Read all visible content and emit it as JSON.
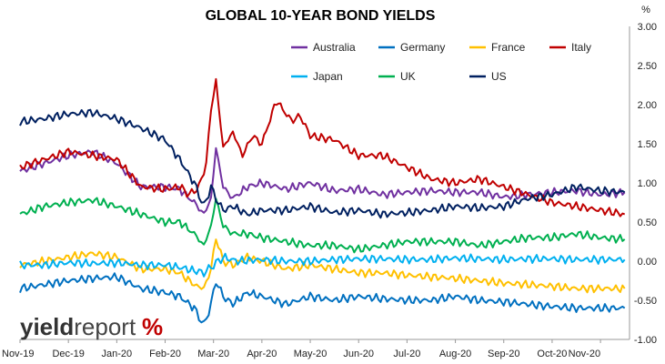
{
  "chart_data": {
    "type": "line",
    "title": "GLOBAL 10-YEAR BOND YIELDS",
    "ylabel": "%",
    "ylim": [
      -1.0,
      3.0
    ],
    "xlim": [
      0,
      12.6
    ],
    "grid": false,
    "legend_position": "top-right",
    "y_ticks": [
      "3.00",
      "2.50",
      "2.00",
      "1.50",
      "1.00",
      "0.50",
      "0.00",
      "-0.50",
      "-1.00"
    ],
    "y_tick_values": [
      3.0,
      2.5,
      2.0,
      1.5,
      1.0,
      0.5,
      0.0,
      -0.5,
      -1.0
    ],
    "x_ticks": [
      "Nov-19",
      "Dec-19",
      "Jan-20",
      "Feb-20",
      "Mar-20",
      "Apr-20",
      "May-20",
      "Jun-20",
      "Jul-20",
      "Aug-20",
      "Sep-20",
      "Oct-20",
      "Nov-20"
    ],
    "series": [
      {
        "name": "Australia",
        "color": "#7030A0",
        "x": [
          0,
          0.5,
          1,
          1.5,
          2,
          2.5,
          3,
          3.3,
          3.6,
          3.8,
          3.95,
          4.05,
          4.2,
          4.4,
          4.7,
          5,
          5.5,
          6,
          6.5,
          7,
          7.5,
          8,
          8.5,
          9,
          9.5,
          10,
          10.5,
          11,
          11.5,
          12,
          12.5
        ],
        "y": [
          1.15,
          1.25,
          1.35,
          1.4,
          1.25,
          0.95,
          0.95,
          0.92,
          0.75,
          0.6,
          0.8,
          1.45,
          0.95,
          0.8,
          0.95,
          1.0,
          0.92,
          1.0,
          0.9,
          0.92,
          0.85,
          0.88,
          0.9,
          0.88,
          0.88,
          0.82,
          0.85,
          0.88,
          0.9,
          0.85,
          0.88
        ]
      },
      {
        "name": "Germany",
        "color": "#0070C0",
        "x": [
          0,
          0.5,
          1,
          1.5,
          2,
          2.5,
          3,
          3.3,
          3.6,
          3.8,
          3.95,
          4.05,
          4.2,
          4.4,
          4.7,
          5,
          5.5,
          6,
          6.5,
          7,
          7.5,
          8,
          8.5,
          9,
          9.5,
          10,
          10.5,
          11,
          11.5,
          12,
          12.5
        ],
        "y": [
          -0.35,
          -0.3,
          -0.25,
          -0.22,
          -0.2,
          -0.35,
          -0.4,
          -0.45,
          -0.6,
          -0.82,
          -0.55,
          -0.25,
          -0.45,
          -0.55,
          -0.4,
          -0.45,
          -0.55,
          -0.45,
          -0.5,
          -0.45,
          -0.48,
          -0.5,
          -0.5,
          -0.45,
          -0.5,
          -0.52,
          -0.55,
          -0.58,
          -0.6,
          -0.6,
          -0.6
        ]
      },
      {
        "name": "France",
        "color": "#FFC000",
        "x": [
          0,
          0.5,
          1,
          1.5,
          2,
          2.5,
          3,
          3.3,
          3.6,
          3.8,
          3.95,
          4.05,
          4.2,
          4.4,
          4.7,
          5,
          5.5,
          6,
          6.5,
          7,
          7.5,
          8,
          8.5,
          9,
          9.5,
          10,
          10.5,
          11,
          11.5,
          12,
          12.5
        ],
        "y": [
          -0.05,
          0.0,
          0.05,
          0.1,
          0.05,
          -0.1,
          -0.1,
          -0.15,
          -0.3,
          -0.35,
          -0.1,
          0.3,
          0.0,
          -0.05,
          0.05,
          0.0,
          -0.1,
          -0.05,
          -0.1,
          -0.15,
          -0.15,
          -0.18,
          -0.2,
          -0.22,
          -0.25,
          -0.28,
          -0.3,
          -0.32,
          -0.35,
          -0.35,
          -0.35
        ]
      },
      {
        "name": "Italy",
        "color": "#C00000",
        "x": [
          0,
          0.5,
          1,
          1.5,
          2,
          2.5,
          3,
          3.3,
          3.5,
          3.7,
          3.85,
          3.95,
          4.05,
          4.2,
          4.4,
          4.6,
          4.8,
          5,
          5.3,
          5.6,
          5.8,
          6,
          6.5,
          7,
          7.5,
          8,
          8.5,
          9,
          9.5,
          10,
          10.5,
          11,
          11.5,
          12,
          12.5
        ],
        "y": [
          1.2,
          1.3,
          1.4,
          1.35,
          1.3,
          0.95,
          0.92,
          0.95,
          0.85,
          0.95,
          1.25,
          1.95,
          2.3,
          1.45,
          1.65,
          1.35,
          1.6,
          1.5,
          2.05,
          1.8,
          1.85,
          1.6,
          1.55,
          1.35,
          1.35,
          1.2,
          1.05,
          1.0,
          1.05,
          0.95,
          0.85,
          0.75,
          0.7,
          0.65,
          0.6
        ]
      },
      {
        "name": "Japan",
        "color": "#00B0F0",
        "x": [
          0,
          0.5,
          1,
          1.5,
          2,
          2.5,
          3,
          3.3,
          3.6,
          3.8,
          4.0,
          4.2,
          4.5,
          5,
          5.5,
          6,
          6.5,
          7,
          7.5,
          8,
          8.5,
          9,
          9.5,
          10,
          10.5,
          11,
          11.5,
          12,
          12.5
        ],
        "y": [
          -0.05,
          -0.05,
          -0.02,
          -0.03,
          -0.02,
          -0.05,
          -0.05,
          -0.08,
          -0.12,
          -0.15,
          -0.05,
          0.05,
          0.0,
          0.02,
          0.0,
          0.0,
          0.02,
          0.03,
          0.03,
          0.02,
          0.02,
          0.04,
          0.03,
          0.02,
          0.03,
          0.03,
          0.02,
          0.02,
          0.02
        ]
      },
      {
        "name": "UK",
        "color": "#00B050",
        "x": [
          0,
          0.5,
          1,
          1.5,
          2,
          2.5,
          3,
          3.3,
          3.6,
          3.8,
          3.95,
          4.05,
          4.2,
          4.4,
          4.7,
          5,
          5.5,
          6,
          6.5,
          7,
          7.5,
          8,
          8.5,
          9,
          9.5,
          10,
          10.5,
          11,
          11.5,
          12,
          12.5
        ],
        "y": [
          0.6,
          0.7,
          0.75,
          0.78,
          0.7,
          0.6,
          0.5,
          0.5,
          0.35,
          0.2,
          0.45,
          0.8,
          0.45,
          0.35,
          0.35,
          0.3,
          0.25,
          0.2,
          0.2,
          0.15,
          0.2,
          0.25,
          0.25,
          0.25,
          0.2,
          0.25,
          0.3,
          0.3,
          0.35,
          0.3,
          0.28
        ]
      },
      {
        "name": "US",
        "color": "#002060",
        "x": [
          0,
          0.5,
          1,
          1.5,
          2,
          2.5,
          3,
          3.3,
          3.6,
          3.8,
          3.95,
          4.05,
          4.2,
          4.4,
          4.7,
          5,
          5.5,
          6,
          6.5,
          7,
          7.5,
          8,
          8.5,
          9,
          9.5,
          10,
          10.5,
          11,
          11.5,
          12,
          12.5
        ],
        "y": [
          1.78,
          1.82,
          1.88,
          1.9,
          1.82,
          1.7,
          1.55,
          1.3,
          1.0,
          0.7,
          0.95,
          0.8,
          0.65,
          0.7,
          0.6,
          0.65,
          0.65,
          0.7,
          0.62,
          0.65,
          0.6,
          0.62,
          0.65,
          0.7,
          0.68,
          0.7,
          0.8,
          0.85,
          0.95,
          0.9,
          0.88
        ]
      }
    ]
  },
  "logo": {
    "text_main": "yield",
    "text_accent": "report",
    "symbol": "%"
  }
}
